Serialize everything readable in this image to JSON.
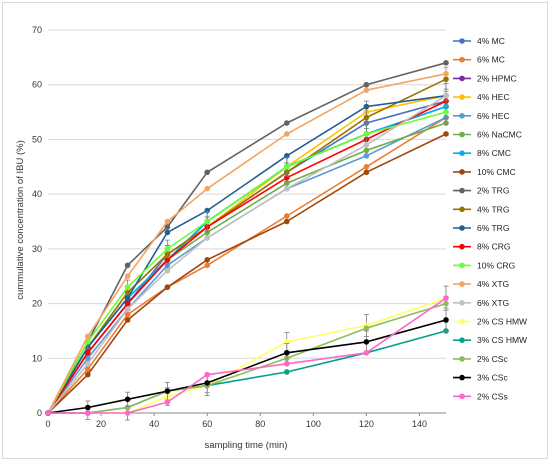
{
  "chart_data": {
    "type": "line",
    "title": "",
    "xlabel": "sampling time (min)",
    "ylabel": "cummulative concentration of IBU (%)",
    "xlim": [
      0,
      150
    ],
    "ylim": [
      0,
      70
    ],
    "xticks": [
      "0",
      "20",
      "40",
      "60",
      "80",
      "100",
      "120",
      "140"
    ],
    "yticks": [
      "0",
      "10",
      "20",
      "30",
      "40",
      "50",
      "60",
      "70"
    ],
    "grid": "horizontal",
    "legend": "right",
    "x": [
      0,
      15,
      30,
      45,
      60,
      90,
      120,
      150
    ],
    "series": [
      {
        "name": "4% MC",
        "color": "#4472C4",
        "values": [
          0,
          11,
          20,
          29,
          34,
          44,
          53,
          57
        ]
      },
      {
        "name": "6% MC",
        "color": "#ED7D31",
        "values": [
          0,
          8,
          18,
          23,
          27,
          36,
          45,
          54
        ]
      },
      {
        "name": "2% HPMC",
        "color": "#7030A0",
        "values": [
          0,
          11,
          20,
          28,
          35,
          45,
          51,
          56
        ]
      },
      {
        "name": "4% HEC",
        "color": "#FFC000",
        "values": [
          0,
          12,
          22,
          29,
          34,
          45,
          55,
          58
        ]
      },
      {
        "name": "6% HEC",
        "color": "#5B9BD5",
        "values": [
          0,
          10,
          19,
          27,
          32,
          41,
          47,
          54
        ]
      },
      {
        "name": "6% NaCMC",
        "color": "#70AD47",
        "values": [
          0,
          12,
          21,
          28,
          33,
          42,
          48,
          53
        ]
      },
      {
        "name": "8% CMC",
        "color": "#00B0F0",
        "values": [
          0,
          12,
          21,
          28,
          35,
          45,
          51,
          56
        ]
      },
      {
        "name": "10% CMC",
        "color": "#9E480E",
        "values": [
          0,
          7,
          17,
          23,
          28,
          35,
          44,
          51
        ]
      },
      {
        "name": "2% TRG",
        "color": "#636363",
        "values": [
          0,
          13,
          27,
          34,
          44,
          53,
          60,
          64
        ]
      },
      {
        "name": "4% TRG",
        "color": "#997300",
        "values": [
          0,
          12,
          22,
          29,
          34,
          44,
          54,
          61
        ]
      },
      {
        "name": "6% TRG",
        "color": "#255E91",
        "values": [
          0,
          12,
          21,
          33,
          37,
          47,
          56,
          58
        ]
      },
      {
        "name": "8% CRG",
        "color": "#FF0000",
        "values": [
          0,
          11,
          20,
          28,
          34,
          43,
          50,
          57
        ]
      },
      {
        "name": "10% CRG",
        "color": "#66FF33",
        "values": [
          0,
          13,
          23,
          30,
          35,
          45,
          51,
          55
        ]
      },
      {
        "name": "4% XTG",
        "color": "#F4A460",
        "values": [
          0,
          14,
          25,
          35,
          41,
          51,
          59,
          62
        ]
      },
      {
        "name": "6% XTG",
        "color": "#C0C0C0",
        "values": [
          0,
          9,
          19,
          26,
          32,
          41,
          49,
          58
        ]
      },
      {
        "name": "2% CS HMW",
        "color": "#FFFF66",
        "values": [
          0,
          0,
          0,
          3,
          5,
          13,
          16,
          21
        ]
      },
      {
        "name": "3% CS HMW",
        "color": "#00A08A",
        "values": [
          0,
          0,
          1,
          4,
          5,
          7.5,
          11,
          15
        ]
      },
      {
        "name": "2% CSc",
        "color": "#8FBC5A",
        "values": [
          0,
          0,
          1,
          4,
          5,
          10,
          15.5,
          20
        ]
      },
      {
        "name": "3% CSc",
        "color": "#000000",
        "values": [
          0,
          1,
          2.5,
          4,
          5.5,
          11,
          13,
          17
        ]
      },
      {
        "name": "2% CSs",
        "color": "#FF66CC",
        "values": [
          0,
          0,
          0,
          2,
          7,
          9,
          11,
          21
        ]
      }
    ],
    "annotations": "error bars shown at each sampling point"
  }
}
